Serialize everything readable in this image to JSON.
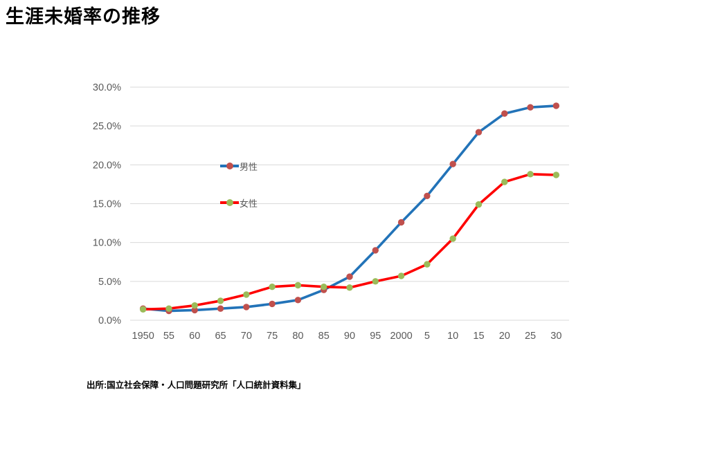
{
  "page": {
    "title": "生涯未婚率の推移",
    "source": "出所:国立社会保障・人口問題研究所「人口統計資料集」"
  },
  "chart_data": {
    "type": "line",
    "title": "生涯未婚率の推移",
    "categories": [
      "1950",
      "55",
      "60",
      "65",
      "70",
      "75",
      "80",
      "85",
      "90",
      "95",
      "2000",
      "5",
      "10",
      "15",
      "20",
      "25",
      "30"
    ],
    "series": [
      {
        "name": "男性",
        "values": [
          1.5,
          1.2,
          1.3,
          1.5,
          1.7,
          2.1,
          2.6,
          3.9,
          5.6,
          9.0,
          12.6,
          16.0,
          20.1,
          24.2,
          26.6,
          27.4,
          27.6
        ],
        "line_color": "#2273B8",
        "marker_color": "#C0504D"
      },
      {
        "name": "女性",
        "values": [
          1.4,
          1.5,
          1.9,
          2.5,
          3.3,
          4.3,
          4.5,
          4.3,
          4.2,
          5.0,
          5.7,
          7.2,
          10.5,
          14.9,
          17.8,
          18.8,
          18.7
        ],
        "line_color": "#FE0000",
        "marker_color": "#9BBB59"
      }
    ],
    "xlabel": "",
    "ylabel": "",
    "ylim": [
      0,
      30
    ],
    "ytick_step": 5,
    "ytick_labels": [
      "0.0%",
      "5.0%",
      "10.0%",
      "15.0%",
      "20.0%",
      "25.0%",
      "30.0%"
    ],
    "grid": "horizontal-only",
    "legend_position": "inside-left",
    "colors": {
      "gridline": "#D9D9D9",
      "axis_text": "#595959",
      "background": "#FFFFFF"
    }
  }
}
